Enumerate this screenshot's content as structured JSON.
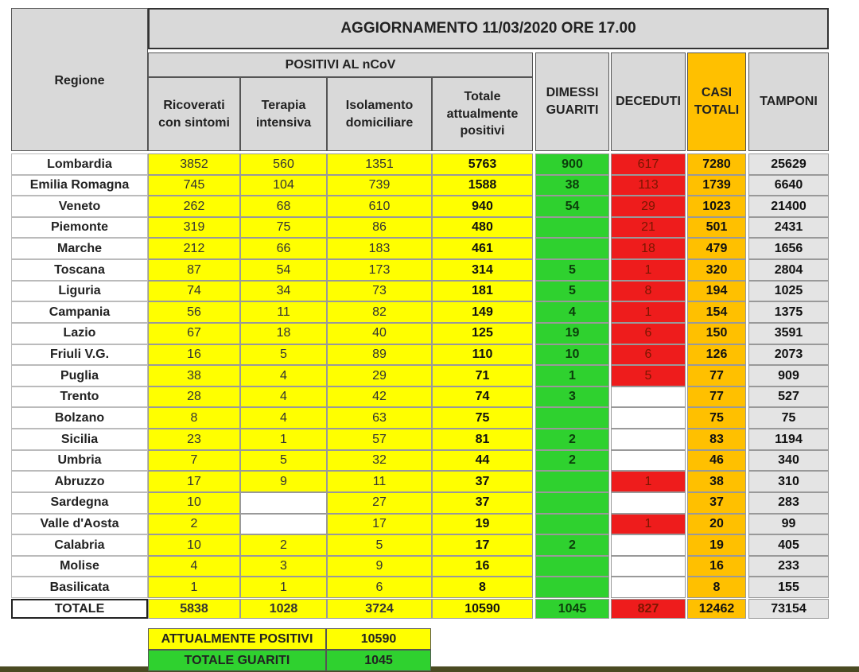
{
  "header": {
    "title": "AGGIORNAMENTO 11/03/2020 ORE 17.00",
    "region": "Regione",
    "group": "POSITIVI AL nCoV",
    "columns": [
      "Ricoverati con sintomi",
      "Terapia intensiva",
      "Isolamento domiciliare",
      "Totale attualmente positivi",
      "DIMESSI GUARITI",
      "DECEDUTI",
      "CASI TOTALI",
      "TAMPONI"
    ]
  },
  "table": {
    "rows": [
      [
        "Lombardia",
        3852,
        560,
        1351,
        5763,
        900,
        617,
        7280,
        25629
      ],
      [
        "Emilia Romagna",
        745,
        104,
        739,
        1588,
        38,
        113,
        1739,
        6640
      ],
      [
        "Veneto",
        262,
        68,
        610,
        940,
        54,
        29,
        1023,
        21400
      ],
      [
        "Piemonte",
        319,
        75,
        86,
        480,
        null,
        21,
        501,
        2431
      ],
      [
        "Marche",
        212,
        66,
        183,
        461,
        null,
        18,
        479,
        1656
      ],
      [
        "Toscana",
        87,
        54,
        173,
        314,
        5,
        1,
        320,
        2804
      ],
      [
        "Liguria",
        74,
        34,
        73,
        181,
        5,
        8,
        194,
        1025
      ],
      [
        "Campania",
        56,
        11,
        82,
        149,
        4,
        1,
        154,
        1375
      ],
      [
        "Lazio",
        67,
        18,
        40,
        125,
        19,
        6,
        150,
        3591
      ],
      [
        "Friuli V.G.",
        16,
        5,
        89,
        110,
        10,
        6,
        126,
        2073
      ],
      [
        "Puglia",
        38,
        4,
        29,
        71,
        1,
        5,
        77,
        909
      ],
      [
        "Trento",
        28,
        4,
        42,
        74,
        3,
        null,
        77,
        527
      ],
      [
        "Bolzano",
        8,
        4,
        63,
        75,
        null,
        null,
        75,
        75
      ],
      [
        "Sicilia",
        23,
        1,
        57,
        81,
        2,
        null,
        83,
        1194
      ],
      [
        "Umbria",
        7,
        5,
        32,
        44,
        2,
        null,
        46,
        340
      ],
      [
        "Abruzzo",
        17,
        9,
        11,
        37,
        null,
        1,
        38,
        310
      ],
      [
        "Sardegna",
        10,
        null,
        27,
        37,
        null,
        null,
        37,
        283
      ],
      [
        "Valle d'Aosta",
        2,
        null,
        17,
        19,
        null,
        1,
        20,
        99
      ],
      [
        "Calabria",
        10,
        2,
        5,
        17,
        2,
        null,
        19,
        405
      ],
      [
        "Molise",
        4,
        3,
        9,
        16,
        null,
        null,
        16,
        233
      ],
      [
        "Basilicata",
        1,
        1,
        6,
        8,
        null,
        null,
        8,
        155
      ]
    ],
    "total": [
      "TOTALE",
      5838,
      1028,
      3724,
      10590,
      1045,
      827,
      12462,
      73154
    ]
  },
  "summary": [
    [
      "ATTUALMENTE POSITIVI",
      10590
    ],
    [
      "TOTALE GUARITI",
      1045
    ]
  ]
}
